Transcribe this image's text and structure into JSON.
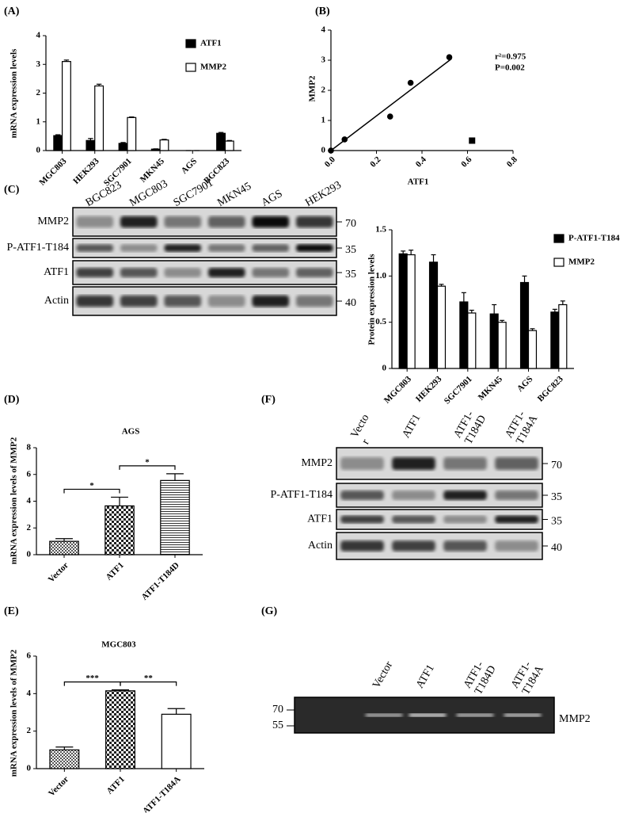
{
  "chart_data": [
    {
      "type": "bar",
      "panel_label": "(A)",
      "y_label": "mRNA expression levels",
      "categories": [
        "MGC803",
        "HEK293",
        "SGC7901",
        "MKN45",
        "AGS",
        "BGC823"
      ],
      "series": [
        {
          "name": "ATF1",
          "color": "#000000",
          "values": [
            0.52,
            0.35,
            0.25,
            0.05,
            0,
            0.6
          ],
          "errors": [
            0.03,
            0.07,
            0.03,
            0.01,
            0,
            0.03
          ]
        },
        {
          "name": "MMP2",
          "color": "#ffffff",
          "values": [
            3.1,
            2.25,
            1.15,
            0.37,
            0,
            0.33
          ],
          "errors": [
            0.05,
            0.06,
            0.02,
            0.02,
            0,
            0.02
          ]
        }
      ],
      "ylim": [
        0,
        4
      ],
      "yticks": [
        0,
        1,
        2,
        3,
        4
      ],
      "legend": "upper right"
    },
    {
      "type": "scatter",
      "panel_label": "(B)",
      "x_label": "ATF1",
      "y_label": "MMP2",
      "x": [
        0,
        0.06,
        0.26,
        0.35,
        0.52,
        0.62
      ],
      "y": [
        0,
        0.37,
        1.13,
        2.25,
        3.1,
        0.33
      ],
      "markers": [
        "circle",
        "circle",
        "circle",
        "circle",
        "circle",
        "square"
      ],
      "fit": {
        "x": [
          0,
          0.53
        ],
        "y": [
          0,
          3.05
        ]
      },
      "annotations": [
        "r²=0.975",
        "P=0.002"
      ],
      "xlim": [
        0,
        0.8
      ],
      "xticks": [
        {
          "value": 0,
          "label": "0.0"
        },
        0.2,
        0.4,
        0.6,
        0.8
      ],
      "ylim": [
        0,
        4
      ],
      "yticks": [
        0,
        1,
        2,
        3,
        4
      ]
    },
    {
      "type": "bar",
      "panel_label": "(C)",
      "y_label": "Protein expression levels",
      "categories": [
        "MGC803",
        "HEK293",
        "SGC7901",
        "MKN45",
        "AGS",
        "BGC823"
      ],
      "series": [
        {
          "name": "P-ATF1-T184",
          "color": "#000000",
          "values": [
            1.24,
            1.15,
            0.72,
            0.59,
            0.93,
            0.61
          ],
          "errors": [
            0.03,
            0.08,
            0.1,
            0.1,
            0.07,
            0.03
          ]
        },
        {
          "name": "MMP2",
          "color": "#ffffff",
          "values": [
            1.23,
            0.89,
            0.6,
            0.5,
            0.41,
            0.69
          ],
          "errors": [
            0.05,
            0.02,
            0.03,
            0.02,
            0.02,
            0.04
          ]
        }
      ],
      "ylim": [
        0,
        1.5
      ],
      "yticks": [
        0,
        0.5,
        {
          "value": 1,
          "label": "1.0"
        },
        1.5
      ],
      "legend": "upper right"
    },
    {
      "type": "bar",
      "panel_label": "(D)",
      "title": "AGS",
      "y_label": "mRNA expression levels of MMP2",
      "categories": [
        "Vector",
        "ATF1",
        "ATF1-T184D"
      ],
      "values": [
        1.0,
        3.65,
        5.55
      ],
      "errors": [
        0.2,
        0.65,
        0.5
      ],
      "patterns": [
        "checker-fine",
        "checker",
        "hlines"
      ],
      "significance": [
        {
          "from": 0,
          "to": 1,
          "label": "*"
        },
        {
          "from": 1,
          "to": 2,
          "label": "*"
        }
      ],
      "ylim": [
        0,
        8
      ],
      "yticks": [
        0,
        2,
        4,
        6,
        8
      ]
    },
    {
      "type": "bar",
      "panel_label": "(E)",
      "title": "MGC803",
      "y_label": "mRNA expression levels of MMP2",
      "categories": [
        "Vector",
        "ATF1",
        "ATF1-T184A"
      ],
      "values": [
        1.0,
        4.15,
        2.9
      ],
      "errors": [
        0.15,
        0.05,
        0.3
      ],
      "patterns": [
        "checker-fine",
        "checker",
        "blank"
      ],
      "significance": [
        {
          "from": 0,
          "to": 1,
          "label": "***"
        },
        {
          "from": 1,
          "to": 2,
          "label": "**"
        }
      ],
      "ylim": [
        0,
        6
      ],
      "yticks": [
        0,
        2,
        4,
        6
      ]
    }
  ],
  "blots": [
    {
      "panel_label": "(C)",
      "lanes": [
        [
          "BGC823"
        ],
        [
          "MGC803"
        ],
        [
          "SGC7901"
        ],
        [
          "MKN45"
        ],
        [
          "AGS"
        ],
        [
          "HEK293"
        ]
      ],
      "rows": [
        {
          "label": "MMP2",
          "marker": 70
        },
        {
          "label": "P-ATF1-T184",
          "marker": 35
        },
        {
          "label": "ATF1",
          "marker": 35
        },
        {
          "label": "Actin",
          "marker": 40
        }
      ]
    },
    {
      "panel_label": "(F)",
      "lanes": [
        [
          "Vecto",
          "r"
        ],
        [
          "ATF1"
        ],
        [
          "ATF1-",
          "T184D"
        ],
        [
          "ATF1-",
          "T184A"
        ]
      ],
      "rows": [
        {
          "label": "MMP2",
          "marker": 70
        },
        {
          "label": "P-ATF1-T184",
          "marker": 35
        },
        {
          "label": "ATF1",
          "marker": 35
        },
        {
          "label": "Actin",
          "marker": 40
        }
      ]
    },
    {
      "panel_label": "(G)",
      "lanes": [
        [
          "Vector"
        ],
        [
          "ATF1"
        ],
        [
          "ATF1-",
          "T184D"
        ],
        [
          "ATF1-",
          "T184A"
        ]
      ],
      "rows": [
        {
          "label": "MMP2"
        }
      ],
      "markers": [
        70,
        55
      ]
    }
  ]
}
